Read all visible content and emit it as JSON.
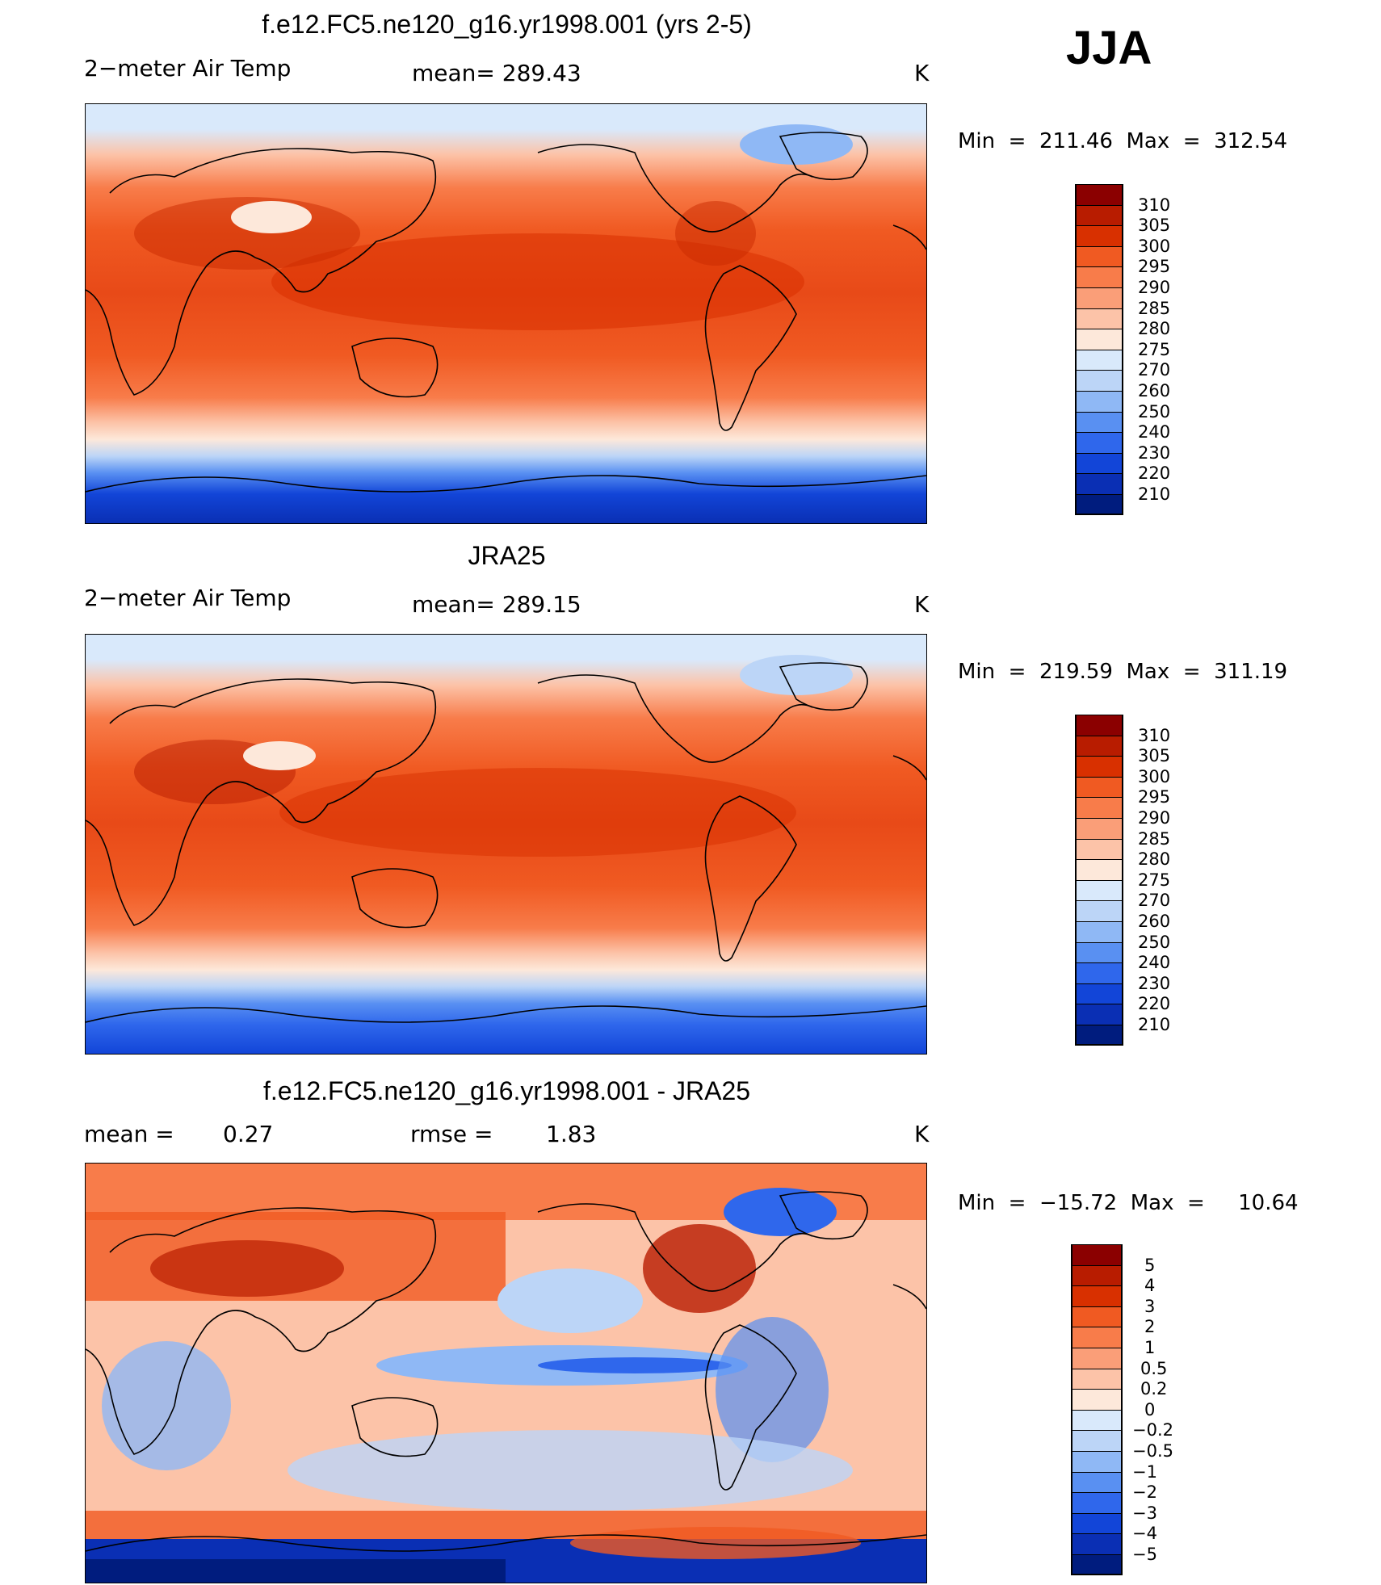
{
  "season": "JJA",
  "panels": [
    {
      "title": "f.e12.FC5.ne120_g16.yr1998.001 (yrs 2-5)",
      "left_text": "2−meter Air Temp",
      "center_text": "mean=  289.43",
      "right_text": "K",
      "minmax": "Min  =  211.46  Max  =  312.54",
      "map_label": "model-temperature-map"
    },
    {
      "title": "JRA25",
      "left_text": "2−meter Air Temp",
      "center_text": "mean=  289.15",
      "right_text": "K",
      "minmax": "Min  =  219.59  Max  =  311.19",
      "map_label": "reanalysis-temperature-map"
    },
    {
      "title": "f.e12.FC5.ne120_g16.yr1998.001 - JRA25",
      "left_text": "mean  =",
      "left_value": "0.27",
      "center_text": "rmse  =",
      "center_value": "1.83",
      "right_text": "K",
      "minmax": "Min  =  −15.72  Max  =     10.64",
      "map_label": "difference-map"
    }
  ],
  "colorbars": {
    "temperature": {
      "labels": [
        "310",
        "305",
        "300",
        "295",
        "290",
        "285",
        "280",
        "275",
        "270",
        "260",
        "250",
        "240",
        "230",
        "220",
        "210"
      ],
      "colors": [
        "#8b0000",
        "#b81c00",
        "#d83000",
        "#f05a22",
        "#f87c4a",
        "#fa9e78",
        "#fcc3a8",
        "#fde8da",
        "#d9e9fb",
        "#bcd5f7",
        "#8fb8f5",
        "#5990f2",
        "#2f67ec",
        "#1245d8",
        "#0a2fb4",
        "#001c7e"
      ]
    },
    "difference": {
      "labels": [
        "5",
        "4",
        "3",
        "2",
        "1",
        "0.5",
        "0.2",
        "0",
        "−0.2",
        "−0.5",
        "−1",
        "−2",
        "−3",
        "−4",
        "−5"
      ],
      "colors": [
        "#8b0000",
        "#b81c00",
        "#d83000",
        "#f05a22",
        "#f87c4a",
        "#fa9e78",
        "#fcc3a8",
        "#fde8da",
        "#d9e9fb",
        "#bcd5f7",
        "#8fb8f5",
        "#5990f2",
        "#2f67ec",
        "#1245d8",
        "#0a2fb4",
        "#001c7e"
      ]
    }
  }
}
